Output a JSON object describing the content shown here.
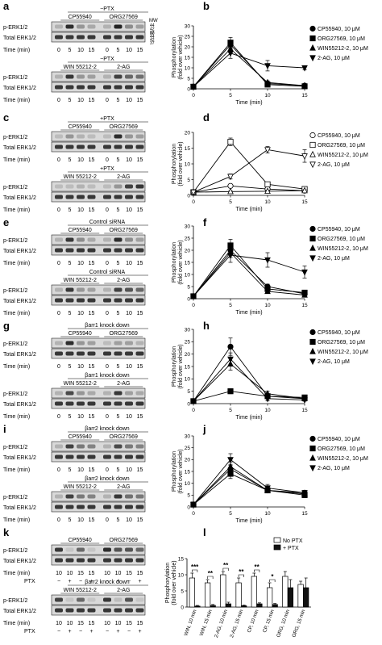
{
  "figure": {
    "panel_letters": [
      "a",
      "b",
      "c",
      "d",
      "e",
      "f",
      "g",
      "h",
      "i",
      "j",
      "k",
      "l"
    ]
  },
  "colors": {
    "band": "#1a1a1a",
    "blot_bg": "#d9d9d9",
    "line": "#000000",
    "bar_open": "#ffffff",
    "bar_filled": "#111111"
  },
  "blots": [
    {
      "letter": "a",
      "groups": [
        {
          "header": "−PTX",
          "ligands": [
            "CP55940",
            "ORG27569"
          ],
          "rows": [
            "p-ERK1/2",
            "Total ERK1/2"
          ],
          "time_label": "Time (min)",
          "times": [
            "0",
            "5",
            "10",
            "15",
            "0",
            "5",
            "10",
            "15"
          ],
          "pattern": "a1",
          "mw": {
            "title": "MW",
            "p": [
              "44",
              "42",
              "37"
            ],
            "t": [
              "50",
              "44",
              "42",
              "37"
            ]
          }
        },
        {
          "header": "−PTX",
          "ligands": [
            "WIN 55212-2",
            "2-AG"
          ],
          "rows": [
            "p-ERK1/2",
            "Total ERK1/2"
          ],
          "time_label": "Time (min)",
          "times": [
            "0",
            "5",
            "10",
            "15",
            "0",
            "5",
            "10",
            "15"
          ],
          "pattern": "a2"
        }
      ]
    },
    {
      "letter": "c",
      "groups": [
        {
          "header": "+PTX",
          "ligands": [
            "CP55940",
            "ORG27569"
          ],
          "rows": [
            "p-ERK1/2",
            "Total ERK1/2"
          ],
          "time_label": "Time (min)",
          "times": [
            "0",
            "5",
            "10",
            "15",
            "0",
            "5",
            "10",
            "15"
          ],
          "pattern": "c1"
        },
        {
          "header": "+PTX",
          "ligands": [
            "WIN 55212-2",
            "2-AG"
          ],
          "rows": [
            "p-ERK1/2",
            "Total ERK1/2"
          ],
          "time_label": "Time (min)",
          "times": [
            "0",
            "5",
            "10",
            "15",
            "0",
            "5",
            "10",
            "15"
          ],
          "pattern": "c2"
        }
      ]
    },
    {
      "letter": "e",
      "groups": [
        {
          "header": "Control siRNA",
          "ligands": [
            "CP55940",
            "ORG27569"
          ],
          "rows": [
            "p-ERK1/2",
            "Total ERK1/2"
          ],
          "time_label": "Time (min)",
          "times": [
            "0",
            "5",
            "10",
            "15",
            "0",
            "5",
            "10",
            "15"
          ],
          "pattern": "e1"
        },
        {
          "header": "Control siRNA",
          "ligands": [
            "WIN 55212-2",
            "2-AG"
          ],
          "rows": [
            "p-ERK1/2",
            "Total ERK1/2"
          ],
          "time_label": "Time (min)",
          "times": [
            "0",
            "5",
            "10",
            "15",
            "0",
            "5",
            "10",
            "15"
          ],
          "pattern": "e2"
        }
      ]
    },
    {
      "letter": "g",
      "groups": [
        {
          "header": "βarr1 knock down",
          "ligands": [
            "CP55940",
            "ORG27569"
          ],
          "rows": [
            "p-ERK1/2",
            "Total ERK1/2"
          ],
          "time_label": "Time (min)",
          "times": [
            "0",
            "5",
            "10",
            "15",
            "0",
            "5",
            "10",
            "15"
          ],
          "pattern": "g1"
        },
        {
          "header": "βarr1 knock down",
          "ligands": [
            "WIN 55212-2",
            "2-AG"
          ],
          "rows": [
            "p-ERK1/2",
            "Total ERK1/2"
          ],
          "time_label": "Time (min)",
          "times": [
            "0",
            "5",
            "10",
            "15",
            "0",
            "5",
            "10",
            "15"
          ],
          "pattern": "g2"
        }
      ]
    },
    {
      "letter": "i",
      "groups": [
        {
          "header": "βarr2 knock down",
          "ligands": [
            "CP55940",
            "ORG27569"
          ],
          "rows": [
            "p-ERK1/2",
            "Total ERK1/2"
          ],
          "time_label": "Time (min)",
          "times": [
            "0",
            "5",
            "10",
            "15",
            "0",
            "5",
            "10",
            "15"
          ],
          "pattern": "i1"
        },
        {
          "header": "βarr2 knock down",
          "ligands": [
            "WIN 55212-2",
            "2-AG"
          ],
          "rows": [
            "p-ERK1/2",
            "Total ERK1/2"
          ],
          "time_label": "Time (min)",
          "times": [
            "0",
            "5",
            "10",
            "15",
            "0",
            "5",
            "10",
            "15"
          ],
          "pattern": "i2"
        }
      ]
    },
    {
      "letter": "k",
      "groups": [
        {
          "header": "",
          "ligands": [
            "CP55940",
            "ORG27569"
          ],
          "rows": [
            "p-ERK1/2",
            "Total ERK1/2"
          ],
          "time_label": "Time (min)",
          "times": [
            "10",
            "10",
            "15",
            "15",
            "10",
            "10",
            "15",
            "15"
          ],
          "ptx_label": "PTX",
          "ptx": [
            "−",
            "+",
            "−",
            "+",
            "−",
            "+",
            "−",
            "+"
          ],
          "pattern": "k1"
        },
        {
          "header": "βarr2 knock down",
          "ligands": [
            "WIN 55212-2",
            "2-AG"
          ],
          "rows": [
            "p-ERK1/2",
            "Total ERK1/2"
          ],
          "time_label": "Time (min)",
          "times": [
            "10",
            "10",
            "15",
            "15",
            "10",
            "10",
            "15",
            "15"
          ],
          "ptx_label": "PTX",
          "ptx": [
            "−",
            "+",
            "−",
            "+",
            "−",
            "+",
            "−",
            "+"
          ],
          "pattern": "k2"
        }
      ]
    }
  ],
  "chart_data": [
    {
      "letter": "b",
      "type": "line",
      "xlabel": "Time (min)",
      "ylabel": "Phosphorylation\n(fold over vehicle)",
      "x": [
        0,
        5,
        10,
        15
      ],
      "xlim": [
        0,
        15
      ],
      "ylim": [
        0,
        30
      ],
      "xticks": [
        0,
        5,
        10,
        15
      ],
      "yticks": [
        0,
        5,
        10,
        15,
        20,
        25,
        30
      ],
      "legend_position": "top-right",
      "series": [
        {
          "name": "CP55940, 10 μM",
          "marker": "circle",
          "filled": true,
          "values": [
            1,
            21,
            2.5,
            1.5
          ],
          "err": [
            0,
            2,
            0.8,
            0.5
          ]
        },
        {
          "name": "ORG27569, 10 μM",
          "marker": "square",
          "filled": true,
          "values": [
            1,
            22,
            2,
            1.2
          ],
          "err": [
            0,
            2.5,
            0.6,
            0.4
          ]
        },
        {
          "name": "WIN55212-2, 10 μM",
          "marker": "triangle-up",
          "filled": true,
          "values": [
            1,
            19,
            3,
            1.5
          ],
          "err": [
            0,
            2,
            0.8,
            0.5
          ]
        },
        {
          "name": "2-AG, 10 μM",
          "marker": "triangle-down",
          "filled": true,
          "values": [
            1,
            17,
            11,
            10
          ],
          "err": [
            0,
            2.5,
            2.5,
            1
          ]
        }
      ]
    },
    {
      "letter": "d",
      "type": "line",
      "xlabel": "Time (min)",
      "ylabel": "Phosphorylation\n(fold over vehicle)",
      "x": [
        0,
        5,
        10,
        15
      ],
      "xlim": [
        0,
        15
      ],
      "ylim": [
        0,
        20
      ],
      "xticks": [
        0,
        5,
        10,
        15
      ],
      "yticks": [
        0,
        5,
        10,
        15,
        20
      ],
      "legend_position": "top-right",
      "series": [
        {
          "name": "CP55940, 10 μM",
          "marker": "circle",
          "filled": false,
          "values": [
            1,
            3,
            2,
            1.5
          ],
          "err": [
            0,
            0.5,
            0.4,
            0.3
          ]
        },
        {
          "name": "ORG27569, 10 μM",
          "marker": "square",
          "filled": false,
          "values": [
            1,
            17,
            3.5,
            2
          ],
          "err": [
            0,
            1.2,
            0.6,
            0.4
          ]
        },
        {
          "name": "WIN55212-2, 10 μM",
          "marker": "triangle-up",
          "filled": false,
          "values": [
            1,
            1.2,
            1.3,
            1.5
          ],
          "err": [
            0,
            0.3,
            0.3,
            0.3
          ]
        },
        {
          "name": "2-AG, 10 μM",
          "marker": "triangle-down",
          "filled": false,
          "values": [
            1,
            6,
            14.5,
            12.5
          ],
          "err": [
            0,
            0.8,
            1,
            2
          ]
        }
      ]
    },
    {
      "letter": "f",
      "type": "line",
      "xlabel": "Time (min)",
      "ylabel": "Phosphorylation\n(fold over vehicle)",
      "x": [
        0,
        5,
        10,
        15
      ],
      "xlim": [
        0,
        15
      ],
      "ylim": [
        0,
        30
      ],
      "xticks": [
        0,
        5,
        10,
        15
      ],
      "yticks": [
        0,
        5,
        10,
        15,
        20,
        25,
        30
      ],
      "legend_position": "top-right",
      "series": [
        {
          "name": "CP55940, 10 μM",
          "marker": "circle",
          "filled": true,
          "values": [
            1,
            20,
            5,
            2
          ],
          "err": [
            0,
            2,
            1,
            0.5
          ]
        },
        {
          "name": "ORG27569, 10 μM",
          "marker": "square",
          "filled": true,
          "values": [
            1,
            22,
            4,
            2.5
          ],
          "err": [
            0,
            2.5,
            1,
            0.5
          ]
        },
        {
          "name": "WIN55212-2, 10 μM",
          "marker": "triangle-up",
          "filled": true,
          "values": [
            1,
            19,
            3,
            1.5
          ],
          "err": [
            0,
            2,
            0.8,
            0.5
          ]
        },
        {
          "name": "2-AG, 10 μM",
          "marker": "triangle-down",
          "filled": true,
          "values": [
            1,
            18,
            16,
            11
          ],
          "err": [
            0,
            3,
            3,
            2.5
          ]
        }
      ]
    },
    {
      "letter": "h",
      "type": "line",
      "xlabel": "Time (min)",
      "ylabel": "Phosphorylation\n(fold over vehicle)",
      "x": [
        0,
        5,
        10,
        15
      ],
      "xlim": [
        0,
        15
      ],
      "ylim": [
        0,
        30
      ],
      "xticks": [
        0,
        5,
        10,
        15
      ],
      "yticks": [
        0,
        5,
        10,
        15,
        20,
        25,
        30
      ],
      "legend_position": "top-right",
      "series": [
        {
          "name": "CP55940, 10 μM",
          "marker": "circle",
          "filled": true,
          "values": [
            1,
            23,
            3,
            2
          ],
          "err": [
            0,
            3.5,
            1,
            0.5
          ]
        },
        {
          "name": "ORG27569, 10 μM",
          "marker": "square",
          "filled": true,
          "values": [
            1,
            5,
            3,
            2.5
          ],
          "err": [
            0,
            1,
            0.8,
            0.5
          ]
        },
        {
          "name": "WIN55212-2, 10 μM",
          "marker": "triangle-up",
          "filled": true,
          "values": [
            1,
            16,
            4,
            2
          ],
          "err": [
            0,
            2.5,
            1,
            0.5
          ]
        },
        {
          "name": "2-AG, 10 μM",
          "marker": "triangle-down",
          "filled": true,
          "values": [
            1,
            18,
            2,
            1.5
          ],
          "err": [
            0,
            2.5,
            0.8,
            0.5
          ]
        }
      ]
    },
    {
      "letter": "j",
      "type": "line",
      "xlabel": "Time (min)",
      "ylabel": "Phosphorylation\n(fold over vehicle)",
      "x": [
        0,
        5,
        10,
        15
      ],
      "xlim": [
        0,
        15
      ],
      "ylim": [
        0,
        30
      ],
      "xticks": [
        0,
        5,
        10,
        15
      ],
      "yticks": [
        0,
        5,
        10,
        15,
        20,
        25,
        30
      ],
      "legend_position": "top-right",
      "series": [
        {
          "name": "CP55940, 10 μM",
          "marker": "circle",
          "filled": true,
          "values": [
            1,
            16,
            7,
            6
          ],
          "err": [
            0,
            2,
            1,
            1
          ]
        },
        {
          "name": "ORG27569, 10 μM",
          "marker": "square",
          "filled": true,
          "values": [
            1,
            14,
            7,
            5
          ],
          "err": [
            0,
            2,
            1,
            1
          ]
        },
        {
          "name": "WIN55212-2, 10 μM",
          "marker": "triangle-up",
          "filled": true,
          "values": [
            1,
            17,
            7,
            5.5
          ],
          "err": [
            0,
            2,
            1,
            1
          ]
        },
        {
          "name": "2-AG, 10 μM",
          "marker": "triangle-down",
          "filled": true,
          "values": [
            1,
            20,
            8,
            6
          ],
          "err": [
            0,
            2.5,
            1.5,
            1
          ]
        }
      ]
    },
    {
      "letter": "l",
      "type": "bar",
      "xlabel": "",
      "ylabel": "Phosphorylation\n(fold over vehicle)",
      "ylim": [
        0,
        15
      ],
      "yticks": [
        0,
        5,
        10,
        15
      ],
      "legend_position": "top-right",
      "categories": [
        "WIN, 10 min",
        "WIN, 15 min",
        "2-AG, 10 min",
        "2-AG, 15 min",
        "CP, 10 min",
        "CP, 15 min",
        "ORG, 10 min",
        "ORG, 15 min"
      ],
      "series": [
        {
          "name": "No PTX",
          "filled": false,
          "values": [
            9,
            7.5,
            10,
            7.5,
            9.5,
            6,
            9.5,
            7
          ],
          "err": [
            1.5,
            1,
            1,
            1.5,
            1,
            1.5,
            1.5,
            1
          ]
        },
        {
          "name": "+ PTX",
          "filled": true,
          "values": [
            0.3,
            0.5,
            1,
            0.4,
            1,
            0.8,
            6,
            6
          ],
          "err": [
            0.2,
            0.3,
            0.5,
            0.2,
            0.3,
            0.3,
            2.5,
            3
          ]
        }
      ],
      "significance": [
        "***",
        "**",
        "**",
        "**",
        "**",
        "*",
        "",
        ""
      ]
    }
  ]
}
